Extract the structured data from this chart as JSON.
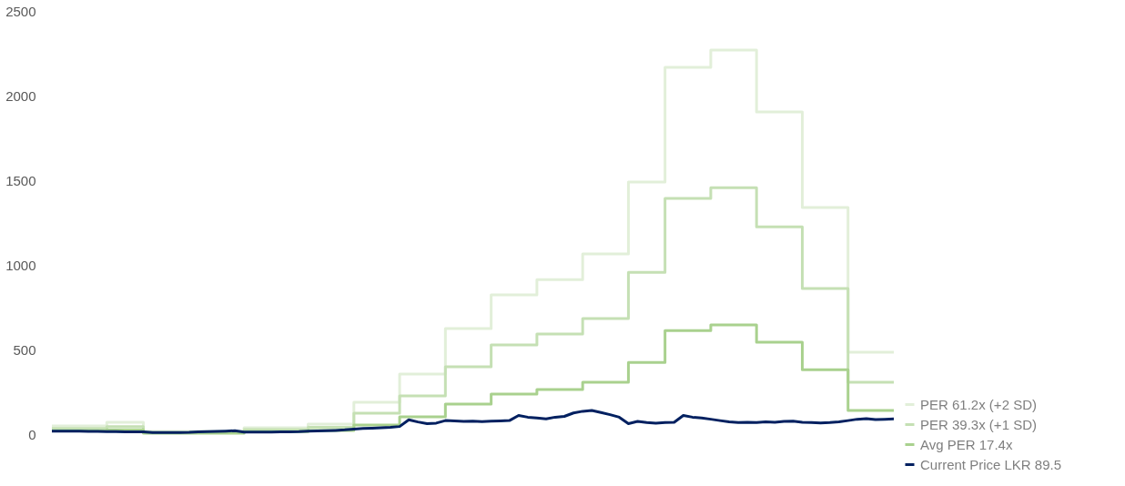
{
  "chart_data": {
    "type": "step",
    "categories": [
      null,
      null,
      null,
      null,
      null,
      null,
      null,
      null,
      null,
      null,
      null,
      null,
      null,
      null,
      null,
      null,
      null,
      null,
      null,
      null,
      null,
      null,
      null,
      null,
      null,
      null,
      null,
      null,
      null,
      null,
      null,
      null,
      null,
      null,
      null,
      null,
      null,
      null,
      null,
      null,
      null,
      null,
      null,
      null,
      null,
      null,
      null,
      null,
      null,
      null,
      null,
      null,
      null,
      null,
      null,
      null,
      null,
      null,
      null,
      null,
      null,
      null,
      null,
      null,
      null,
      null,
      null,
      null,
      null,
      null,
      null,
      null,
      null,
      null,
      null,
      null,
      null,
      null,
      null,
      null,
      null,
      null,
      null,
      null,
      null,
      null,
      null,
      null,
      null,
      null,
      null,
      null,
      null
    ],
    "series": [
      {
        "name": "PER 61.2x (+2 SD)",
        "color": "#e2efd9",
        "values": [
          48,
          48,
          48,
          48,
          48,
          48,
          70,
          70,
          70,
          70,
          16,
          16,
          16,
          16,
          16,
          16,
          16,
          16,
          16,
          16,
          16,
          38,
          38,
          38,
          38,
          38,
          38,
          38,
          59,
          59,
          59,
          59,
          59,
          188,
          188,
          188,
          188,
          188,
          355,
          355,
          355,
          355,
          355,
          623,
          623,
          623,
          623,
          623,
          822,
          822,
          822,
          822,
          822,
          913,
          913,
          913,
          913,
          913,
          1065,
          1065,
          1065,
          1065,
          1065,
          1489,
          1489,
          1489,
          1489,
          2167,
          2167,
          2167,
          2167,
          2167,
          2269,
          2269,
          2269,
          2269,
          2269,
          1903,
          1903,
          1903,
          1903,
          1903,
          1339,
          1339,
          1339,
          1339,
          1339,
          484,
          484,
          484,
          484,
          484,
          484
        ]
      },
      {
        "name": "PER 39.3x (+1 SD)",
        "color": "#c5e0b4",
        "values": [
          33,
          33,
          33,
          33,
          33,
          33,
          45,
          45,
          45,
          45,
          10,
          10,
          10,
          10,
          10,
          10,
          10,
          10,
          10,
          10,
          10,
          27,
          27,
          27,
          27,
          27,
          27,
          27,
          40,
          40,
          40,
          40,
          40,
          124,
          124,
          124,
          124,
          124,
          226,
          226,
          226,
          226,
          226,
          398,
          398,
          398,
          398,
          398,
          527,
          527,
          527,
          527,
          527,
          591,
          591,
          591,
          591,
          591,
          683,
          683,
          683,
          683,
          683,
          956,
          956,
          956,
          956,
          1392,
          1392,
          1392,
          1392,
          1392,
          1456,
          1456,
          1456,
          1456,
          1456,
          1225,
          1225,
          1225,
          1225,
          1225,
          860,
          860,
          860,
          860,
          860,
          306,
          306,
          306,
          306,
          306,
          306
        ]
      },
      {
        "name": "Avg PER 17.4x",
        "color": "#a9d18e",
        "values": [
          20,
          20,
          20,
          20,
          20,
          20,
          25,
          25,
          25,
          25,
          5,
          5,
          5,
          5,
          5,
          5,
          5,
          5,
          5,
          5,
          5,
          15,
          15,
          15,
          15,
          15,
          15,
          15,
          22,
          22,
          22,
          22,
          22,
          54,
          54,
          54,
          54,
          54,
          102,
          102,
          102,
          102,
          102,
          177,
          177,
          177,
          177,
          177,
          236,
          236,
          236,
          236,
          236,
          263,
          263,
          263,
          263,
          263,
          306,
          306,
          306,
          306,
          306,
          424,
          424,
          424,
          424,
          612,
          612,
          612,
          612,
          612,
          645,
          645,
          645,
          645,
          645,
          543,
          543,
          543,
          543,
          543,
          381,
          381,
          381,
          381,
          381,
          140,
          140,
          140,
          140,
          140,
          140
        ]
      },
      {
        "name": "Current Price LKR 89.5",
        "type": "line",
        "color": "#002060",
        "values": [
          18,
          18,
          17,
          17,
          16,
          16,
          15,
          15,
          14,
          14,
          13,
          10,
          10,
          10,
          10,
          11,
          14,
          15,
          16,
          18,
          20,
          12,
          12,
          12,
          12,
          13,
          14,
          15,
          18,
          19,
          20,
          22,
          25,
          30,
          33,
          35,
          38,
          40,
          45,
          85,
          72,
          62,
          65,
          80,
          78,
          75,
          76,
          74,
          76,
          78,
          80,
          110,
          100,
          95,
          90,
          100,
          105,
          125,
          135,
          140,
          128,
          115,
          100,
          62,
          75,
          68,
          65,
          68,
          70,
          110,
          100,
          95,
          88,
          80,
          72,
          68,
          70,
          68,
          72,
          70,
          75,
          76,
          70,
          68,
          66,
          68,
          72,
          80,
          88,
          92,
          86,
          88,
          89.5
        ]
      }
    ],
    "ylim": [
      0,
      2500
    ],
    "yticks": [
      0,
      500,
      1000,
      1500,
      2000,
      2500
    ],
    "tick_labels": "y",
    "grid": false,
    "legend": "bottom right"
  }
}
